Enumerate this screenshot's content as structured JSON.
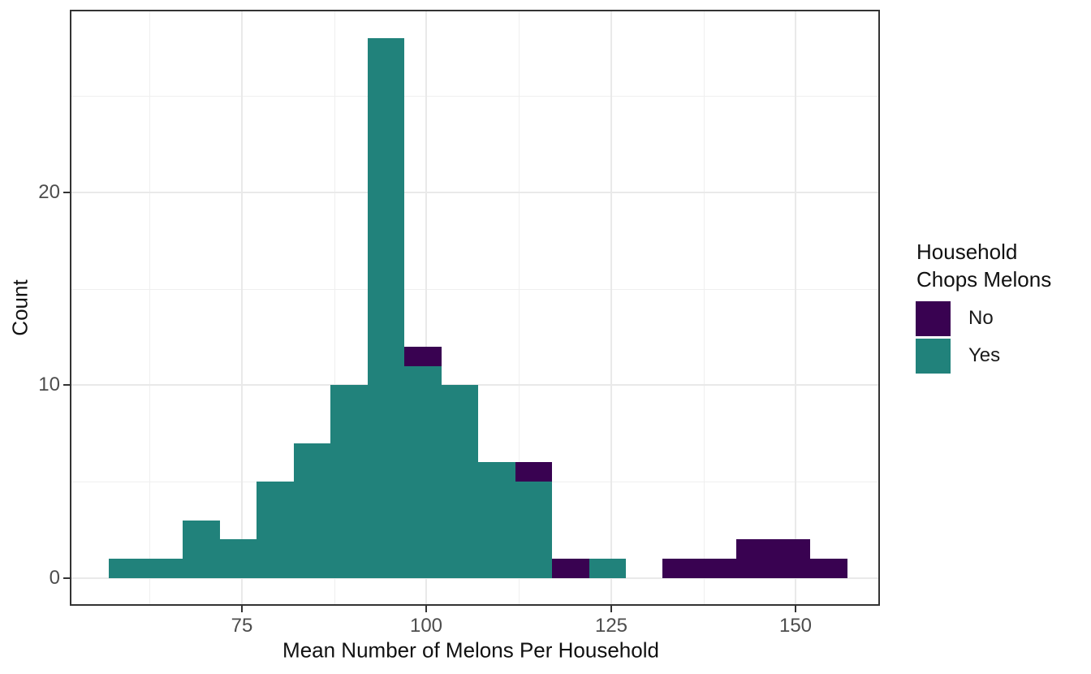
{
  "chart_data": {
    "type": "bar",
    "subtype": "stacked-histogram",
    "title": "",
    "xlabel": "Mean Number of Melons Per Household",
    "ylabel": "Count",
    "x_domain": [
      51.8,
      161.3
    ],
    "y_domain": [
      -1.39,
      29.43
    ],
    "x_ticks": [
      75,
      100,
      125,
      150
    ],
    "x_tick_labels": [
      "75",
      "100",
      "125",
      "150"
    ],
    "x_minor_ticks": [
      62.5,
      87.5,
      112.5,
      137.5
    ],
    "y_ticks": [
      0,
      10,
      20
    ],
    "y_tick_labels": [
      "0",
      "10",
      "20"
    ],
    "y_minor_ticks": [
      5,
      15,
      25
    ],
    "grid": true,
    "legend_position": "right",
    "bin_width": 5,
    "bin_starts": [
      57,
      62,
      67,
      72,
      77,
      82,
      87,
      92,
      97,
      102,
      107,
      112,
      117,
      122,
      127,
      132,
      137,
      142,
      147,
      152
    ],
    "series": [
      {
        "name": "Yes",
        "color": "#21827B",
        "stack_order": "bottom",
        "counts_by_bin": [
          1,
          1,
          3,
          2,
          5,
          7,
          10,
          28,
          11,
          10,
          6,
          5,
          0,
          1,
          0,
          0,
          0,
          0,
          0,
          0
        ]
      },
      {
        "name": "No",
        "color": "#390251",
        "stack_order": "top",
        "counts_by_bin": [
          0,
          0,
          0,
          0,
          0,
          0,
          0,
          0,
          1,
          0,
          0,
          1,
          1,
          0,
          0,
          1,
          1,
          2,
          2,
          1
        ]
      }
    ],
    "colors": {
      "yes": "#21827B",
      "no": "#390251"
    }
  },
  "legend": {
    "title_line1": "Household",
    "title_line2": "Chops Melons",
    "items": [
      {
        "label": "No",
        "color": "#390251"
      },
      {
        "label": "Yes",
        "color": "#21827B"
      }
    ]
  }
}
